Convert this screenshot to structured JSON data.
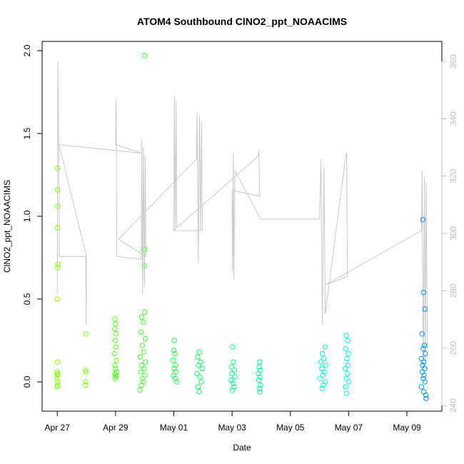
{
  "chart_data": {
    "type": "scatter",
    "title": "ATOM4 Southbound ClNO2_ppt_NOAACIMS",
    "x_label": "Date",
    "y_label": "ClNO2_ppt_NOAACIMS",
    "xlim": [
      -0.52,
      13.2
    ],
    "xticks": [
      {
        "value": 0,
        "label": "Apr 27"
      },
      {
        "value": 2,
        "label": "Apr 29"
      },
      {
        "value": 4,
        "label": "May 01"
      },
      {
        "value": 6,
        "label": "May 03"
      },
      {
        "value": 8,
        "label": "May 05"
      },
      {
        "value": 10,
        "label": "May 07"
      },
      {
        "value": 12,
        "label": "May 09"
      }
    ],
    "ylim": [
      -0.177,
      2.056
    ],
    "yticks": [
      {
        "value": 0,
        "label": "0.0"
      },
      {
        "value": 0.5,
        "label": "0.5"
      },
      {
        "value": 1,
        "label": "1.0"
      },
      {
        "value": 1.5,
        "label": "1.5"
      },
      {
        "value": 2,
        "label": "2.0"
      }
    ],
    "y2lim": [
      238.0,
      367.0
    ],
    "y2ticks": [
      240,
      260,
      280,
      300,
      320,
      340,
      360
    ],
    "y2_color": "#bebebe",
    "series": [
      {
        "color": "#80ff00",
        "x": [
          0,
          0.01,
          0.02,
          0,
          0.02,
          0.01,
          0.0,
          0.01,
          -0.01,
          0.02,
          0.0,
          -0.01,
          0.02,
          0.01,
          0.0
        ],
        "values": [
          1.29,
          1.16,
          1.06,
          0.93,
          0.71,
          0.69,
          0.5,
          0.12,
          0.06,
          0.05,
          0.04,
          0.02,
          0.0,
          -0.02,
          -0.03
        ]
      },
      {
        "color": "#70ff10",
        "x": [
          0.98,
          0.97,
          0.99,
          0.98,
          0.97
        ],
        "values": [
          0.29,
          0.07,
          0.06,
          0.0,
          -0.02
        ]
      },
      {
        "color": "#55ff20",
        "x": [
          1.98,
          2.0,
          1.97,
          2.02,
          1.99,
          2.01,
          1.96,
          2.03,
          1.98,
          2.0,
          2.04,
          1.97,
          2.01,
          2.02,
          1.99
        ],
        "values": [
          0.38,
          0.35,
          0.32,
          0.29,
          0.25,
          0.21,
          0.17,
          0.13,
          0.1,
          0.08,
          0.06,
          0.05,
          0.04,
          0.03,
          0.02
        ]
      },
      {
        "color": "#40ff30",
        "x": [
          3.0,
          3.0,
          2.99,
          3.0,
          2.9,
          2.95,
          2.88,
          3.02,
          2.92,
          2.97,
          2.85,
          3.03,
          2.9,
          2.98,
          2.86,
          3.01,
          2.93,
          2.96,
          2.89,
          2.84
        ],
        "values": [
          1.97,
          0.8,
          0.7,
          0.42,
          0.39,
          0.36,
          0.3,
          0.26,
          0.22,
          0.18,
          0.15,
          0.12,
          0.1,
          0.08,
          0.06,
          0.04,
          0.02,
          0.0,
          -0.02,
          -0.05
        ]
      },
      {
        "color": "#25ff50",
        "x": [
          4.02,
          4.0,
          4.04,
          3.98,
          4.06,
          4.01,
          4.08,
          3.99,
          4.05,
          4.1
        ],
        "values": [
          0.25,
          0.19,
          0.17,
          0.13,
          0.1,
          0.08,
          0.06,
          0.04,
          0.02,
          0.0
        ]
      },
      {
        "color": "#10ff60",
        "x": [
          4.88,
          4.82,
          4.93,
          4.85,
          4.97,
          4.8,
          4.9,
          4.95,
          4.84,
          4.87
        ],
        "values": [
          0.18,
          0.15,
          0.12,
          0.1,
          0.08,
          0.05,
          0.03,
          0.0,
          -0.03,
          -0.06
        ]
      },
      {
        "color": "#00ff80",
        "x": [
          6.02,
          6.05,
          5.98,
          6.08,
          6.0,
          6.1,
          5.97,
          6.04,
          6.07,
          6.01
        ],
        "values": [
          0.21,
          0.12,
          0.09,
          0.07,
          0.05,
          0.03,
          0.01,
          -0.01,
          -0.03,
          -0.05
        ]
      },
      {
        "color": "#00ff95",
        "x": [
          6.95,
          6.93,
          6.97,
          6.9,
          6.96,
          6.92,
          6.98,
          6.94,
          6.95
        ],
        "values": [
          0.12,
          0.09,
          0.07,
          0.05,
          0.03,
          0.01,
          -0.02,
          -0.04,
          -0.06
        ]
      },
      {
        "color": "#00ffd5",
        "x": [
          9.2,
          9.1,
          9.15,
          9.05,
          9.22,
          9.08,
          9.18,
          9.12,
          9.02,
          9.2,
          9.14,
          9.09
        ],
        "values": [
          0.21,
          0.17,
          0.14,
          0.12,
          0.1,
          0.08,
          0.06,
          0.04,
          0.02,
          0.0,
          -0.02,
          -0.04
        ]
      },
      {
        "color": "#00f0e8",
        "x": [
          9.92,
          9.97,
          9.9,
          10.0,
          9.94,
          9.98,
          9.88,
          9.96,
          9.92,
          10.01,
          9.9,
          9.93
        ],
        "values": [
          0.28,
          0.25,
          0.2,
          0.17,
          0.14,
          0.1,
          0.08,
          0.05,
          0.02,
          0.0,
          -0.03,
          -0.07
        ]
      },
      {
        "color": "#0095ff",
        "x": [
          12.55,
          12.57,
          12.62,
          12.52,
          12.6,
          12.56,
          12.63,
          12.5,
          12.58,
          12.54,
          12.61,
          12.53,
          12.59,
          12.56,
          12.62,
          12.5,
          12.58,
          12.65,
          12.66
        ],
        "values": [
          0.98,
          0.54,
          0.44,
          0.29,
          0.22,
          0.2,
          0.17,
          0.14,
          0.12,
          0.1,
          0.08,
          0.06,
          0.04,
          0.02,
          0.0,
          -0.03,
          -0.06,
          -0.08,
          -0.1
        ]
      },
      {
        "type": "line",
        "axis": "y2",
        "color": "#c8c8c8",
        "x": [
          0.0,
          0.02,
          0.05,
          0.07,
          0.98,
          0.99,
          1.0,
          0.06,
          2.9,
          2.0,
          2.02,
          2.04,
          2.88,
          2.9,
          2.93,
          2.96,
          2.99,
          3.02,
          3.04,
          2.1,
          4.78,
          4.8,
          4.84,
          4.88,
          4.92,
          4.95,
          4.98,
          4.0,
          4.02,
          4.05,
          4.08,
          4.1,
          6.9,
          6.92,
          6.95,
          6.0,
          6.02,
          6.04,
          6.06,
          6.1,
          6.98,
          9.0,
          9.05,
          9.1,
          9.15,
          9.2,
          9.9,
          9.93,
          9.96,
          9.2,
          12.5,
          12.52,
          12.56,
          12.6,
          12.63,
          12.66,
          12.7
        ],
        "values": [
          279,
          360,
          331,
          292,
          292,
          268,
          292,
          331,
          328,
          331,
          347,
          292,
          291,
          333,
          279,
          330,
          281,
          327,
          292,
          298,
          326,
          342,
          290,
          341,
          301,
          339,
          301,
          301,
          348,
          301,
          346,
          302,
          327,
          329,
          313,
          315,
          287,
          328,
          284,
          322,
          305,
          305,
          326,
          268,
          323,
          272,
          327,
          328,
          285,
          282,
          301,
          322,
          252,
          320,
          255,
          318,
          260
        ]
      }
    ]
  }
}
